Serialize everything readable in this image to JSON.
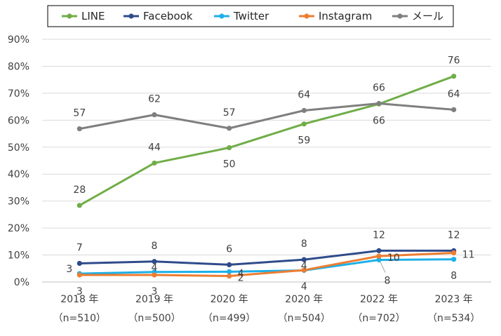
{
  "chart_data": {
    "type": "line",
    "categories": [
      "2018 年",
      "2019 年",
      "2020 年",
      "2020 年",
      "2022 年",
      "2023 年"
    ],
    "category_sublabels": [
      "（n=510）",
      "（n=500）",
      "（n=499）",
      "（n=504）",
      "（n=702）",
      "（n=534）"
    ],
    "ylim": [
      0,
      90
    ],
    "yticks": [
      0,
      10,
      20,
      30,
      40,
      50,
      60,
      70,
      80,
      90
    ],
    "ytick_labels": [
      "0%",
      "10%",
      "20%",
      "30%",
      "40%",
      "50%",
      "60%",
      "70%",
      "80%",
      "90%"
    ],
    "grid": true,
    "legend_position": "top",
    "series": [
      {
        "name": "LINE",
        "color": "#70ad47",
        "values": [
          28.4,
          44.1,
          49.8,
          58.6,
          66.0,
          76.3
        ],
        "labels": [
          "28",
          "44",
          "50",
          "59",
          "66",
          "76"
        ],
        "label_pos": [
          "above",
          "above",
          "below",
          "below",
          "below",
          "above"
        ]
      },
      {
        "name": "Facebook",
        "color": "#2f4b8a",
        "values": [
          6.9,
          7.6,
          6.4,
          8.3,
          11.6,
          11.6
        ],
        "labels": [
          "7",
          "8",
          "6",
          "8",
          "12",
          "12"
        ],
        "label_pos": [
          "above",
          "above",
          "above",
          "above",
          "above",
          "above"
        ]
      },
      {
        "name": "Twitter",
        "color": "#1cb0e8",
        "values": [
          3.1,
          3.7,
          3.8,
          4.3,
          8.2,
          8.4
        ],
        "labels": [
          "3",
          "4",
          "4",
          "4",
          "8",
          "8"
        ],
        "label_pos": [
          "left",
          "on",
          "right",
          "on",
          "below-right",
          "below"
        ]
      },
      {
        "name": "Instagram",
        "color": "#ed7d31",
        "values": [
          2.6,
          2.6,
          2.2,
          4.4,
          9.6,
          10.8
        ],
        "labels": [
          "3",
          "3",
          "2",
          "4",
          "10",
          "11"
        ],
        "label_pos": [
          "below",
          "below",
          "right",
          "below",
          "right",
          "right"
        ]
      },
      {
        "name": "メール",
        "color": "#7f7f7f",
        "values": [
          56.8,
          62.0,
          57.0,
          63.6,
          66.2,
          63.9
        ],
        "labels": [
          "57",
          "62",
          "57",
          "64",
          "66",
          "64"
        ],
        "label_pos": [
          "above",
          "above",
          "above",
          "above",
          "above",
          "above"
        ]
      }
    ]
  }
}
